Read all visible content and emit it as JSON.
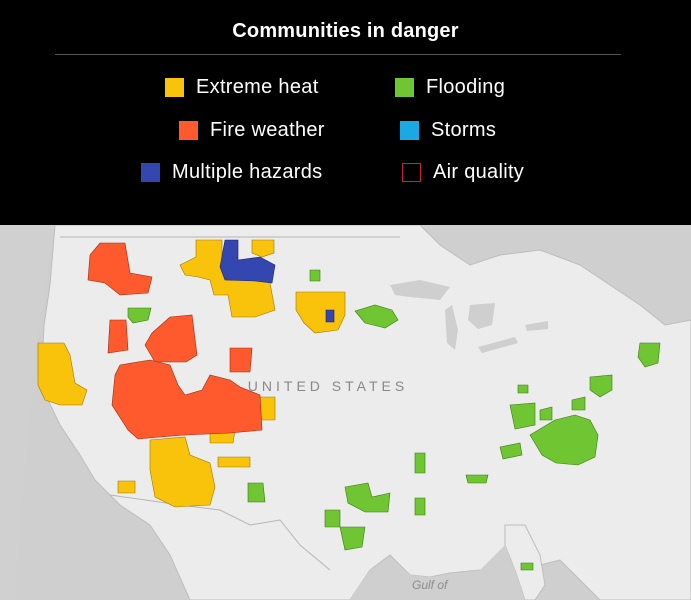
{
  "title": "Communities in danger",
  "legend": [
    {
      "label": "Extreme heat",
      "color": "#F9C20B",
      "style": "filled"
    },
    {
      "label": "Flooding",
      "color": "#70C532",
      "style": "filled"
    },
    {
      "label": "Fire weather",
      "color": "#FF5A2D",
      "style": "filled"
    },
    {
      "label": "Storms",
      "color": "#1BA9E4",
      "style": "filled"
    },
    {
      "label": "Multiple hazards",
      "color": "#3446B0",
      "style": "filled"
    },
    {
      "label": "Air quality",
      "color": "#C62828",
      "style": "outline"
    }
  ],
  "map": {
    "country_label": "UNITED STATES",
    "water_label": "Gulf of",
    "land_color": "#EEEEEE",
    "water_color": "#CFCFCF",
    "border_color": "#B5B5B5"
  }
}
